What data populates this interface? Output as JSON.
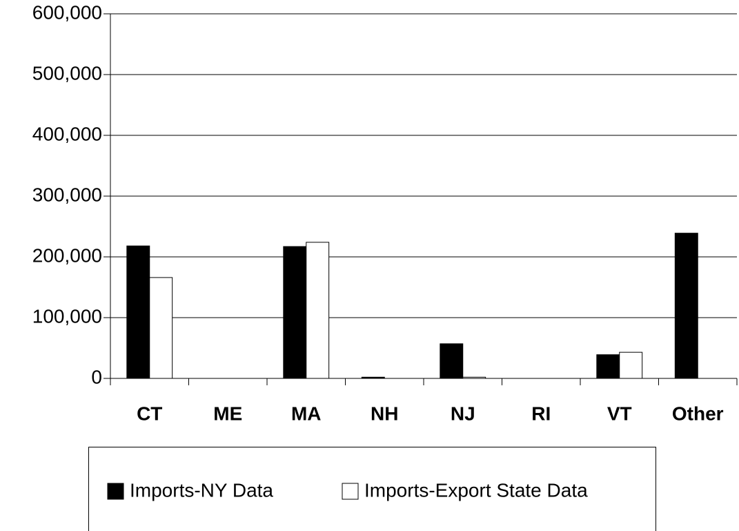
{
  "chart_data": {
    "type": "bar",
    "categories": [
      "CT",
      "ME",
      "MA",
      "NH",
      "NJ",
      "RI",
      "VT",
      "Other"
    ],
    "series": [
      {
        "name": "Imports-NY Data",
        "color": "#000000",
        "values": [
          218000,
          0,
          217000,
          2000,
          57000,
          0,
          39000,
          239000
        ]
      },
      {
        "name": "Imports-Export State Data",
        "color": "#ffffff",
        "values": [
          166000,
          0,
          224000,
          0,
          2000,
          0,
          43000,
          0
        ]
      }
    ],
    "ylim": [
      0,
      600000
    ],
    "yticks": [
      0,
      {
        "value": 100000,
        "label": "100,000"
      },
      {
        "value": 200000,
        "label": "200,000"
      },
      {
        "value": 300000,
        "label": "300,000"
      },
      {
        "value": 400000,
        "label": "400,000"
      },
      {
        "value": 500000,
        "label": "500,000"
      },
      {
        "value": 600000,
        "label": "600,000"
      }
    ],
    "grid": true,
    "legend": "bottom"
  }
}
